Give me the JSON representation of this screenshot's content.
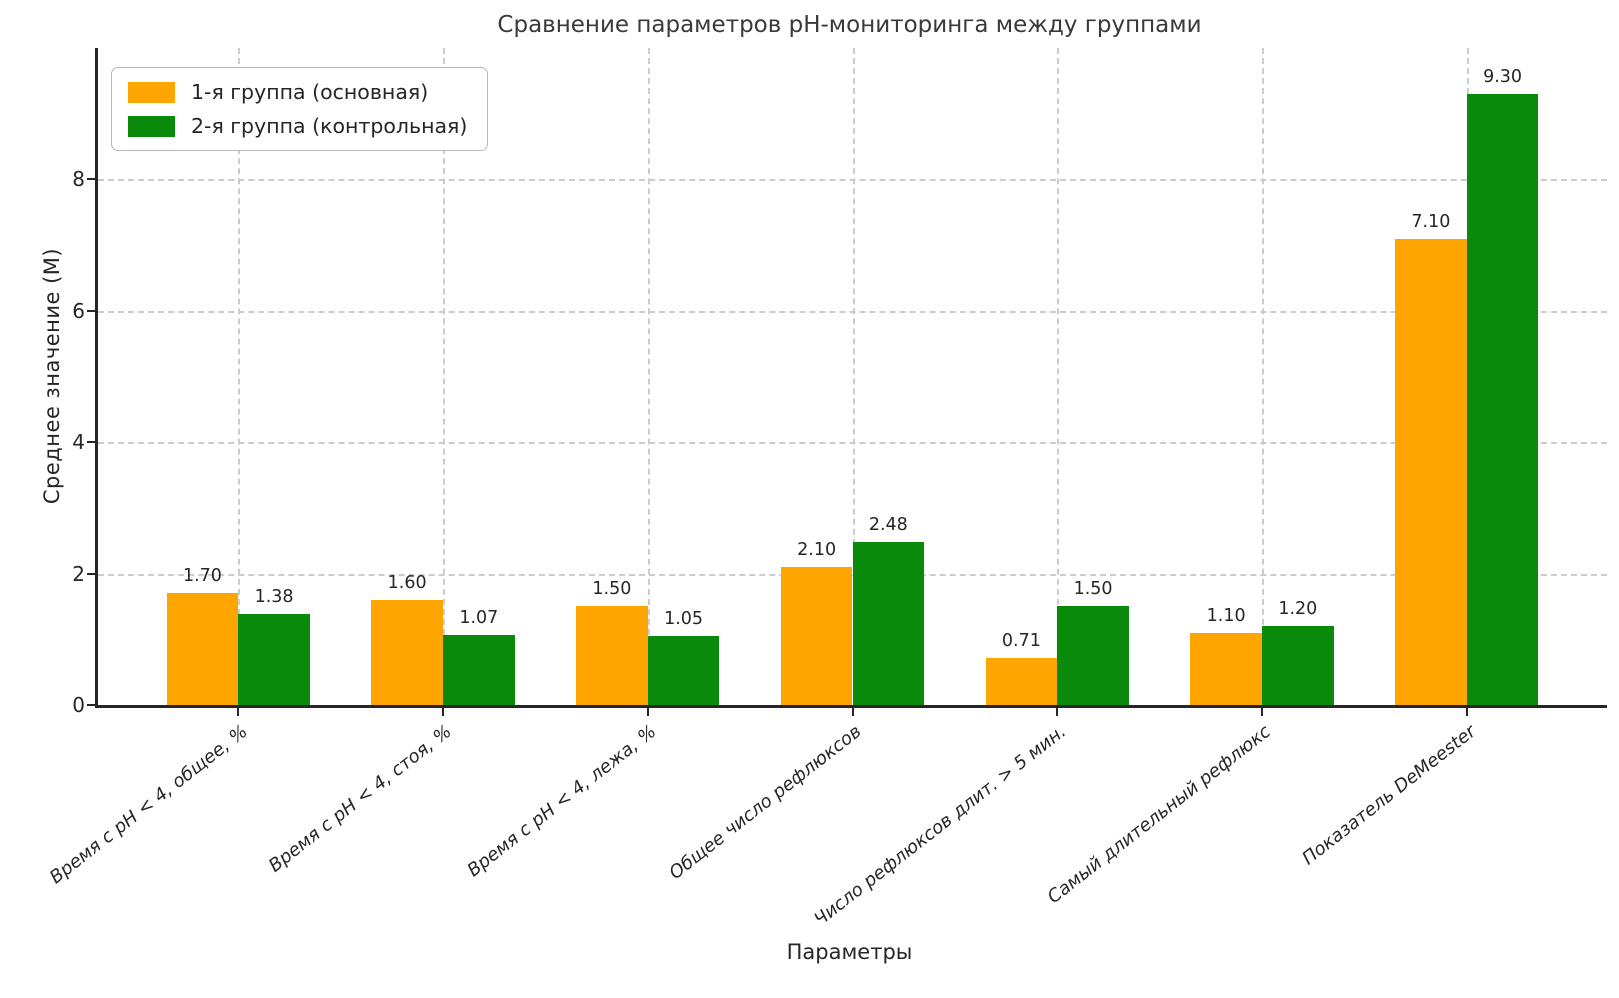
{
  "chart_data": {
    "type": "bar",
    "title": "Сравнение параметров pH-мониторинга между группами",
    "xlabel": "Параметры",
    "ylabel": "Среднее значение (М)",
    "categories": [
      "Время с pH < 4, общее, %",
      "Время с pH < 4, стоя, %",
      "Время с pH < 4, лежа, %",
      "Общее число рефлюксов",
      "Число рефлюксов длит. > 5 мин.",
      "Самый длительный рефлюкс",
      "Показатель DeMeester"
    ],
    "series": [
      {
        "name": "1-я группа (основная)",
        "color": "#FFA500",
        "values": [
          1.7,
          1.6,
          1.5,
          2.1,
          0.71,
          1.1,
          7.1
        ]
      },
      {
        "name": "2-я группа (контрольная)",
        "color": "#0A8A0A",
        "values": [
          1.38,
          1.07,
          1.05,
          2.48,
          1.5,
          1.2,
          9.3
        ]
      }
    ],
    "ylim": [
      0,
      10
    ],
    "yticks": [
      0,
      2,
      4,
      6,
      8
    ],
    "xlim": [
      -0.685,
      6.685
    ],
    "bar_width": 0.35,
    "grid": true,
    "gridline_style": "dashed",
    "legend_position": "upper-left",
    "xtick_label_style": "italic rotated 38deg",
    "value_label_decimals": 2
  }
}
